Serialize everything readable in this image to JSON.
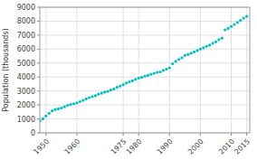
{
  "chart_data": {
    "type": "scatter",
    "ylabel": "Population (thousands)",
    "x": [
      1948,
      1949,
      1950,
      1951,
      1952,
      1953,
      1954,
      1955,
      1956,
      1957,
      1958,
      1959,
      1960,
      1961,
      1962,
      1963,
      1964,
      1965,
      1966,
      1967,
      1968,
      1969,
      1970,
      1971,
      1972,
      1973,
      1974,
      1975,
      1976,
      1977,
      1978,
      1979,
      1980,
      1981,
      1982,
      1983,
      1984,
      1985,
      1986,
      1987,
      1988,
      1989,
      1990,
      1991,
      1992,
      1993,
      1994,
      1995,
      1996,
      1997,
      1998,
      1999,
      2000,
      2001,
      2002,
      2003,
      2004,
      2005,
      2006,
      2007,
      2008,
      2009,
      2010,
      2011,
      2012,
      2013,
      2014,
      2015
    ],
    "values": [
      872,
      1014,
      1203,
      1404,
      1578,
      1669,
      1718,
      1789,
      1872,
      1976,
      2032,
      2089,
      2150,
      2234,
      2331,
      2430,
      2526,
      2598,
      2657,
      2776,
      2841,
      2919,
      2974,
      3065,
      3148,
      3268,
      3350,
      3454,
      3574,
      3654,
      3737,
      3836,
      3921,
      3978,
      4063,
      4118,
      4199,
      4267,
      4331,
      4369,
      4477,
      4560,
      4659,
      4946,
      5123,
      5261,
      5382,
      5545,
      5620,
      5709,
      5800,
      5900,
      6003,
      6100,
      6200,
      6286,
      6415,
      6524,
      6673,
      6784,
      7374,
      7485,
      7624,
      7766,
      7910,
      8059,
      8215,
      8345
    ],
    "color": "#00bfbf",
    "xlim": [
      1948,
      2016
    ],
    "ylim": [
      0,
      9000
    ],
    "xticks": [
      1950,
      1960,
      1975,
      1980,
      1990,
      2000,
      2010,
      2015
    ],
    "yticks": [
      0,
      1000,
      2000,
      3000,
      4000,
      5000,
      6000,
      7000,
      8000,
      9000
    ],
    "grid": true
  }
}
